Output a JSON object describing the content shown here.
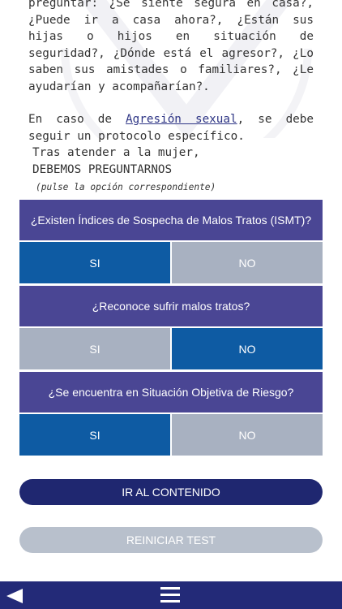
{
  "intro": {
    "paragraph1": "preguntar: ¿Se siente segura en casa?, ¿Puede ir a casa ahora?, ¿Están sus hijas o hijos en situación de seguridad?, ¿Dónde está el agresor?, ¿Lo saben sus amistades o familiares?, ¿Le ayudarían y acompañarían?.",
    "paragraph2_before": "En caso de ",
    "paragraph2_link": "Agresión sexual",
    "paragraph2_after": ", se debe seguir un protocolo específico."
  },
  "prompt": {
    "line1": "Tras atender a la mujer,",
    "line2": "DEBEMOS PREGUNTARNOS",
    "hint": "(pulse la opción correspondiente)"
  },
  "questions": [
    {
      "text": "¿Existen Índices de Sospecha de Malos Tratos (ISMT)?",
      "yes": "SI",
      "no": "NO",
      "selected": "yes"
    },
    {
      "text": "¿Reconoce sufrir malos tratos?",
      "yes": "SI",
      "no": "NO",
      "selected": "no"
    },
    {
      "text": "¿Se encuentra en Situación Objetiva de Riesgo?",
      "yes": "SI",
      "no": "NO",
      "selected": "yes"
    }
  ],
  "buttons": {
    "go": "IR AL CONTENIDO",
    "reset": "REINICIAR TEST"
  },
  "icons": {
    "back": "back-arrow-icon",
    "menu": "hamburger-menu-icon",
    "watermark": "awareness-ribbon-icon"
  },
  "colors": {
    "question_bg": "#4a4694",
    "option_selected": "#0e5ba3",
    "option_unselected": "#a8b1c1",
    "primary_button": "#1f2770",
    "secondary_button": "#b8c0cc",
    "bottom_bar": "#232a78",
    "link": "#2e3585"
  }
}
